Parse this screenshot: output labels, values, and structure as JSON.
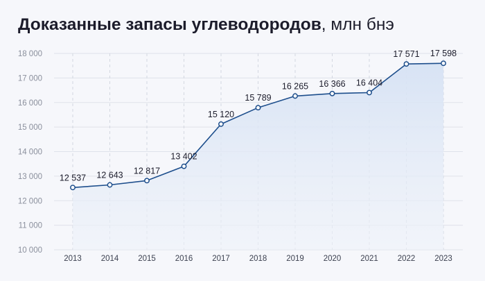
{
  "header": {
    "title_bold": "Доказанные запасы углеводородов",
    "title_unit": ", млн бнэ"
  },
  "chart_data": {
    "type": "area",
    "title": "Доказанные запасы углеводородов, млн бнэ",
    "xlabel": "",
    "ylabel": "",
    "categories": [
      "2013",
      "2014",
      "2015",
      "2016",
      "2017",
      "2018",
      "2019",
      "2020",
      "2021",
      "2022",
      "2023"
    ],
    "values": [
      12537,
      12643,
      12817,
      13402,
      15120,
      15789,
      16265,
      16366,
      16404,
      17571,
      17598
    ],
    "value_labels": [
      "12 537",
      "12 643",
      "12 817",
      "13 402",
      "15 120",
      "15 789",
      "16 265",
      "16 366",
      "16 404",
      "17 571",
      "17 598"
    ],
    "ylim": [
      10000,
      18000
    ],
    "yticks": [
      10000,
      11000,
      12000,
      13000,
      14000,
      15000,
      16000,
      17000,
      18000
    ],
    "ytick_labels": [
      "10 000",
      "11 000",
      "12 000",
      "13 000",
      "14 000",
      "15 000",
      "16 000",
      "17 000",
      "18 000"
    ],
    "grid": "horizontal solid, vertical dashed",
    "legend": "none",
    "colors": {
      "line": "#1d4e8c",
      "fill": "#dfe8f6",
      "grid": "#dfe2ea",
      "marker_fill": "#ffffff"
    }
  }
}
